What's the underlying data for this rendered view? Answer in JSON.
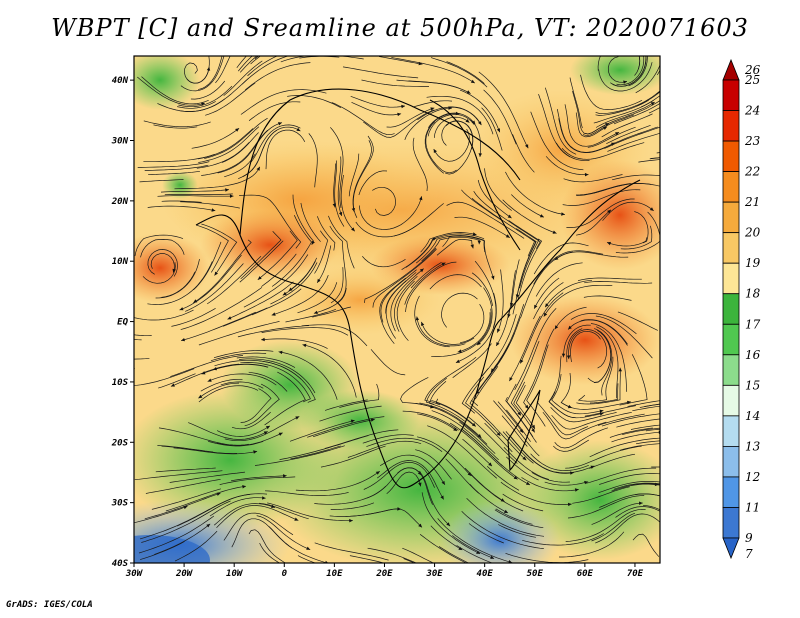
{
  "title": "WBPT [C] and Sreamline at 500hPa, VT: 2020071603",
  "credit": "GrADS: IGES/COLA",
  "map": {
    "lat_labels": [
      "40N",
      "30N",
      "20N",
      "10N",
      "EQ",
      "10S",
      "20S",
      "30S",
      "40S"
    ],
    "lon_labels": [
      "30W",
      "20W",
      "10W",
      "0",
      "10E",
      "20E",
      "30E",
      "40E",
      "50E",
      "60E",
      "70E"
    ],
    "lat_range": [
      -40,
      44
    ],
    "lon_range": [
      -30,
      75
    ]
  },
  "colorbar": {
    "labels": [
      "26",
      "25",
      "24",
      "23",
      "22",
      "21",
      "20",
      "19",
      "18",
      "17",
      "16",
      "15",
      "14",
      "13",
      "12",
      "11",
      "9",
      "7"
    ],
    "colors": [
      "#a50000",
      "#c80000",
      "#e62800",
      "#f05a00",
      "#f58c1e",
      "#f5aa3c",
      "#f8c864",
      "#fde696",
      "#3cb43c",
      "#50c850",
      "#8cdc8c",
      "#e6fae6",
      "#b4dcf0",
      "#8cbeeb",
      "#5096e6",
      "#3c78d2",
      "#2864c8"
    ]
  }
}
